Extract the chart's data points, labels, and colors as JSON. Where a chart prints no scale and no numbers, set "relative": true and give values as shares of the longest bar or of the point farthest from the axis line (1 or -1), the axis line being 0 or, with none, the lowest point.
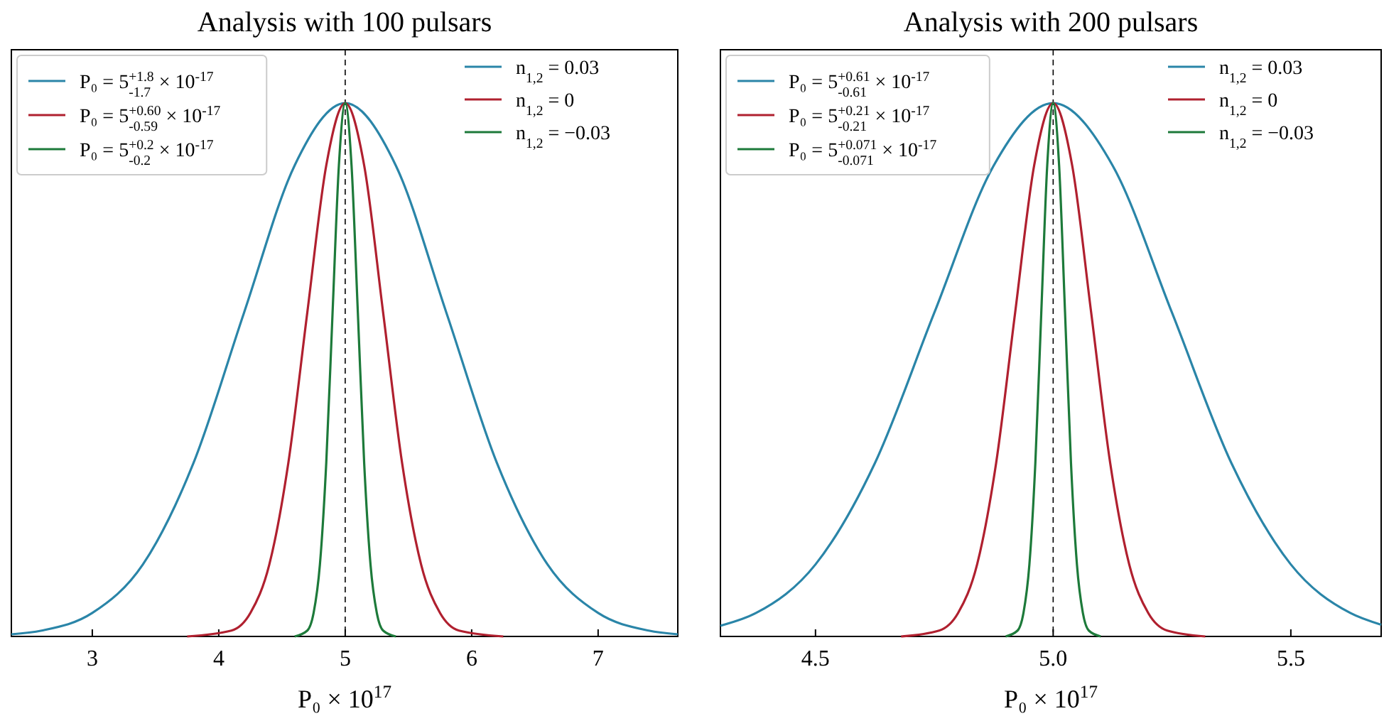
{
  "chart_data": [
    {
      "type": "line",
      "title": "Analysis with 100 pulsars",
      "xlabel": "P₀ × 10$^{17}$",
      "relative": true,
      "xlim": [
        2.36,
        7.63
      ],
      "xticks": [
        3,
        4,
        5,
        6,
        7
      ],
      "grid": false,
      "legend": "top right",
      "marker": "none",
      "line_style": "solid",
      "ref_lines": [
        {
          "axis": "x",
          "value": 5,
          "color": "#000000",
          "line_style": "dashed"
        }
      ],
      "annotations": [
        "P₀ = 5$^{+1.8}$$_{-1.7}$ × 10$^{-17}$",
        "P₀ = 5$^{+0.60}$$_{-0.59}$ × 10$^{-17}$",
        "P₀ = 5$^{+0.2}$$_{-0.2}$ × 10$^{-17}$"
      ],
      "series": [
        {
          "name": "n$_{1,2}$ = 0.03",
          "color": "#2a85a8",
          "x": [
            2.36,
            2.6,
            3,
            3.4,
            3.8,
            4.2,
            4.6,
            5,
            5.4,
            5.8,
            6.2,
            6.6,
            7,
            7.4,
            7.63
          ],
          "values": [
            0.004,
            0.011,
            0.044,
            0.135,
            0.325,
            0.607,
            0.883,
            1,
            0.883,
            0.607,
            0.325,
            0.135,
            0.044,
            0.011,
            0.004
          ]
        },
        {
          "name": "n$_{1,2}$ = 0",
          "color": "#b0202f",
          "x": [
            3.75,
            4.1,
            4.25,
            4.4,
            4.55,
            4.7,
            4.85,
            5,
            5.15,
            5.3,
            5.45,
            5.6,
            5.75,
            5.9,
            6.25
          ],
          "values": [
            0,
            0.011,
            0.044,
            0.135,
            0.325,
            0.607,
            0.883,
            1,
            0.883,
            0.607,
            0.325,
            0.135,
            0.044,
            0.011,
            0
          ]
        },
        {
          "name": "n$_{1,2}$ = −0.03",
          "color": "#1d7a3a",
          "x": [
            4.6,
            4.7,
            4.75,
            4.8,
            4.85,
            4.9,
            4.95,
            5,
            5.05,
            5.1,
            5.15,
            5.2,
            5.25,
            5.3,
            5.4
          ],
          "values": [
            0,
            0.011,
            0.044,
            0.135,
            0.325,
            0.607,
            0.883,
            1,
            0.883,
            0.607,
            0.325,
            0.135,
            0.044,
            0.011,
            0
          ]
        }
      ]
    },
    {
      "type": "line",
      "title": "Analysis with 200 pulsars",
      "xlabel": "P₀ × 10$^{17}$",
      "relative": true,
      "xlim": [
        4.3,
        5.69
      ],
      "xticks": [
        {
          "value": 4.5,
          "label": "4.5"
        },
        {
          "value": 5,
          "label": "5.0"
        },
        {
          "value": 5.5,
          "label": "5.5"
        }
      ],
      "grid": false,
      "legend": "top right",
      "marker": "none",
      "line_style": "solid",
      "ref_lines": [
        {
          "axis": "x",
          "value": 5,
          "color": "#000000",
          "line_style": "dashed"
        }
      ],
      "annotations": [
        "P₀ = 5$^{+0.61}$$_{-0.61}$ × 10$^{-17}$",
        "P₀ = 5$^{+0.21}$$_{-0.21}$ × 10$^{-17}$",
        "P₀ = 5$^{+0.071}$$_{-0.071}$ × 10$^{-17}$"
      ],
      "series": [
        {
          "name": "n$_{1,2}$ = 0.03",
          "color": "#2a85a8",
          "x": [
            4.3,
            4.375,
            4.5,
            4.625,
            4.75,
            4.875,
            5,
            5.125,
            5.25,
            5.375,
            5.5,
            5.625,
            5.69
          ],
          "values": [
            0.02,
            0.044,
            0.135,
            0.325,
            0.607,
            0.883,
            1,
            0.883,
            0.607,
            0.325,
            0.135,
            0.044,
            0.022
          ]
        },
        {
          "name": "n$_{1,2}$ = 0",
          "color": "#b0202f",
          "x": [
            4.68,
            4.76,
            4.8,
            4.84,
            4.88,
            4.92,
            4.96,
            5,
            5.04,
            5.08,
            5.12,
            5.16,
            5.2,
            5.24,
            5.32
          ],
          "values": [
            0,
            0.011,
            0.044,
            0.135,
            0.325,
            0.607,
            0.883,
            1,
            0.883,
            0.607,
            0.325,
            0.135,
            0.044,
            0.011,
            0
          ]
        },
        {
          "name": "n$_{1,2}$ = −0.03",
          "color": "#1d7a3a",
          "x": [
            4.9,
            4.925,
            4.9375,
            4.95,
            4.9625,
            4.975,
            4.9875,
            5,
            5.0125,
            5.025,
            5.0375,
            5.05,
            5.0625,
            5.075,
            5.1
          ],
          "values": [
            0,
            0.011,
            0.044,
            0.135,
            0.325,
            0.607,
            0.883,
            1,
            0.883,
            0.607,
            0.325,
            0.135,
            0.044,
            0.011,
            0
          ]
        }
      ]
    }
  ]
}
